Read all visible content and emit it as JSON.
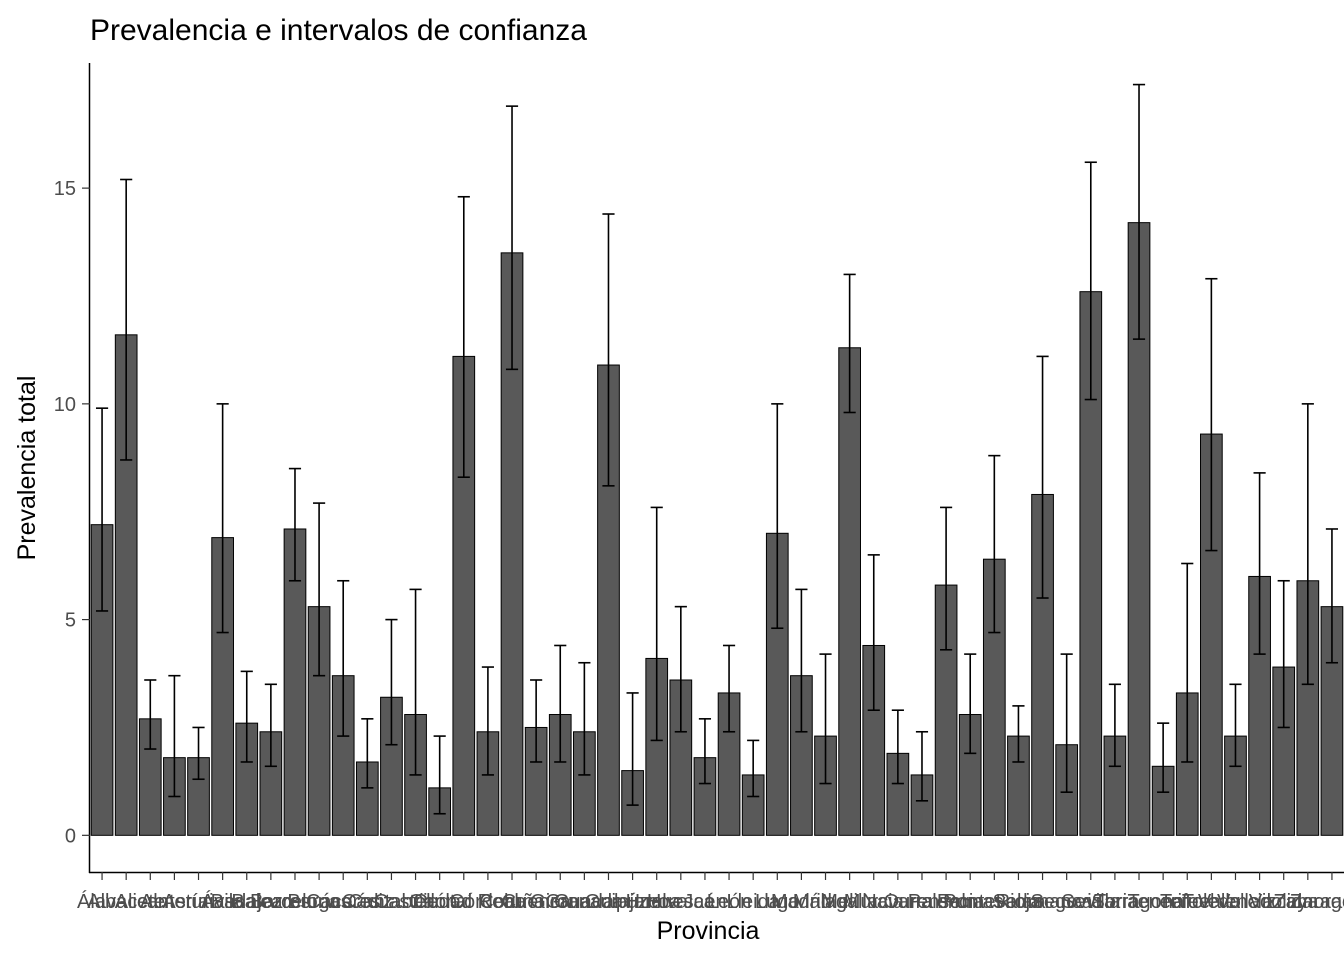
{
  "chart_data": {
    "type": "bar",
    "title": "Prevalencia e intervalos de confianza",
    "xlabel": "Provincia",
    "ylabel": "Prevalencia total",
    "ylim": [
      -0.85,
      17.9
    ],
    "yticks": [
      0,
      5,
      10,
      15
    ],
    "grid": false,
    "bar_color": "#595959",
    "edge_color": "#000000",
    "error_bars": true,
    "categories": [
      "Álava",
      "Albacete",
      "Alicante",
      "Almería",
      "Asturias",
      "Ávila",
      "Badajoz",
      "Baleares",
      "Barcelona",
      "Burgos",
      "Cáceres",
      "Cádiz",
      "Cantabria",
      "Castellón",
      "Ceuta",
      "Ciudad Real",
      "Córdoba",
      "Coruña",
      "Cuenca",
      "Girona",
      "Granada",
      "Guadalajara",
      "Guipúzcoa",
      "Huelva",
      "Huesca",
      "Jaén",
      "León",
      "Lleida",
      "Lugo",
      "Madrid",
      "Málaga",
      "Melilla",
      "Murcia",
      "Navarra",
      "Ourense",
      "Palencia",
      "Palmas",
      "Pontevedra",
      "Rioja",
      "Salamanca",
      "Segovia",
      "Sevilla",
      "Soria",
      "Tarragona",
      "Tenerife",
      "Teruel",
      "Toledo",
      "Valencia",
      "Valladolid",
      "Vizcaya",
      "Zamora",
      "Zaragoza"
    ],
    "values": [
      7.2,
      11.6,
      2.7,
      1.8,
      1.8,
      6.9,
      2.6,
      2.4,
      7.1,
      5.3,
      3.7,
      1.7,
      3.2,
      2.8,
      1.1,
      11.1,
      2.4,
      13.5,
      2.5,
      2.8,
      2.4,
      10.9,
      1.5,
      4.1,
      3.6,
      1.8,
      3.3,
      1.4,
      7.0,
      3.7,
      2.3,
      11.3,
      4.4,
      1.9,
      1.4,
      5.8,
      2.8,
      6.4,
      2.3,
      7.9,
      2.1,
      12.6,
      2.3,
      14.2,
      1.6,
      3.3,
      9.3,
      2.3,
      6.0,
      3.9,
      5.9,
      5.3
    ],
    "ci_lower": [
      5.2,
      8.7,
      2.0,
      0.9,
      1.3,
      4.7,
      1.7,
      1.6,
      5.9,
      3.7,
      2.3,
      1.1,
      2.1,
      1.4,
      0.5,
      8.3,
      1.4,
      10.8,
      1.7,
      1.7,
      1.4,
      8.1,
      0.7,
      2.2,
      2.4,
      1.2,
      2.4,
      0.9,
      4.8,
      2.4,
      1.2,
      9.8,
      2.9,
      1.2,
      0.8,
      4.3,
      1.9,
      4.7,
      1.7,
      5.5,
      1.0,
      10.1,
      1.6,
      11.5,
      1.0,
      1.7,
      6.6,
      1.6,
      4.2,
      2.5,
      3.5,
      4.0
    ],
    "ci_upper": [
      9.9,
      15.2,
      3.6,
      3.7,
      2.5,
      10.0,
      3.8,
      3.5,
      8.5,
      7.7,
      5.9,
      2.7,
      5.0,
      5.7,
      2.3,
      14.8,
      3.9,
      16.9,
      3.6,
      4.4,
      4.0,
      14.4,
      3.3,
      7.6,
      5.3,
      2.7,
      4.4,
      2.2,
      10.0,
      5.7,
      4.2,
      13.0,
      6.5,
      2.9,
      2.4,
      7.6,
      4.2,
      8.8,
      3.0,
      11.1,
      4.2,
      15.6,
      3.5,
      17.4,
      2.6,
      6.3,
      12.9,
      3.5,
      8.4,
      5.9,
      10.0,
      7.1
    ]
  }
}
